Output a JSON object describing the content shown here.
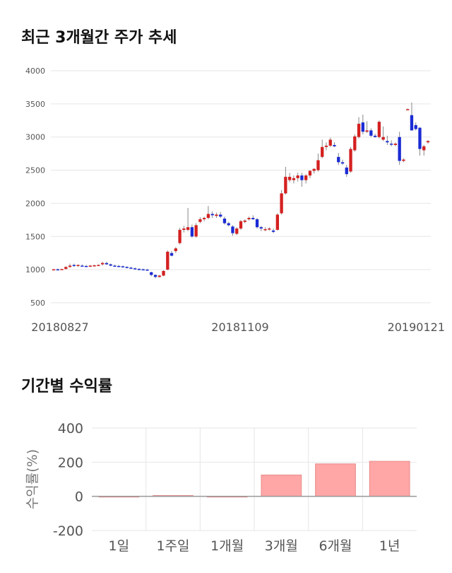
{
  "chart_data": [
    {
      "type": "candlestick",
      "title": "최근 3개월간 주가 추세",
      "ylim": [
        500,
        4000
      ],
      "yticks": [
        500,
        1000,
        1500,
        2000,
        2500,
        3000,
        3500,
        4000
      ],
      "xtick_labels": [
        "20180827",
        "20181109",
        "20190121"
      ],
      "grid": true,
      "colors": {
        "up": "#d42020",
        "down": "#1a2bd4",
        "wick": "#888888"
      },
      "candles": [
        [
          1000,
          1010,
          990,
          1005
        ],
        [
          1005,
          1015,
          995,
          1000
        ],
        [
          1000,
          1010,
          995,
          1008
        ],
        [
          1010,
          1050,
          1005,
          1040
        ],
        [
          1040,
          1090,
          1030,
          1060
        ],
        [
          1070,
          1090,
          1040,
          1060
        ],
        [
          1060,
          1080,
          1040,
          1070
        ],
        [
          1060,
          1080,
          1045,
          1055
        ],
        [
          1055,
          1070,
          1040,
          1050
        ],
        [
          1050,
          1070,
          1040,
          1060
        ],
        [
          1060,
          1075,
          1045,
          1065
        ],
        [
          1065,
          1080,
          1055,
          1070
        ],
        [
          1080,
          1120,
          1060,
          1100
        ],
        [
          1100,
          1115,
          1070,
          1080
        ],
        [
          1080,
          1090,
          1050,
          1060
        ],
        [
          1060,
          1075,
          1045,
          1055
        ],
        [
          1055,
          1070,
          1040,
          1050
        ],
        [
          1050,
          1060,
          1030,
          1040
        ],
        [
          1040,
          1050,
          1020,
          1030
        ],
        [
          1030,
          1040,
          1010,
          1020
        ],
        [
          1020,
          1030,
          1000,
          1010
        ],
        [
          1010,
          1020,
          990,
          1005
        ],
        [
          1005,
          1015,
          990,
          1000
        ],
        [
          1000,
          1010,
          985,
          995
        ],
        [
          960,
          970,
          900,
          920
        ],
        [
          920,
          930,
          870,
          890
        ],
        [
          890,
          920,
          880,
          910
        ],
        [
          910,
          990,
          900,
          980
        ],
        [
          1000,
          1290,
          990,
          1270
        ],
        [
          1250,
          1280,
          1200,
          1210
        ],
        [
          1280,
          1340,
          1250,
          1320
        ],
        [
          1400,
          1630,
          1380,
          1600
        ],
        [
          1600,
          1660,
          1560,
          1620
        ],
        [
          1600,
          1930,
          1580,
          1640
        ],
        [
          1640,
          1680,
          1480,
          1500
        ],
        [
          1500,
          1700,
          1480,
          1670
        ],
        [
          1720,
          1790,
          1700,
          1760
        ],
        [
          1760,
          1800,
          1730,
          1780
        ],
        [
          1780,
          1960,
          1760,
          1840
        ],
        [
          1840,
          1880,
          1780,
          1820
        ],
        [
          1810,
          1860,
          1780,
          1830
        ],
        [
          1830,
          1870,
          1780,
          1800
        ],
        [
          1770,
          1800,
          1680,
          1700
        ],
        [
          1700,
          1720,
          1650,
          1670
        ],
        [
          1650,
          1670,
          1510,
          1550
        ],
        [
          1540,
          1640,
          1520,
          1620
        ],
        [
          1620,
          1750,
          1600,
          1730
        ],
        [
          1720,
          1760,
          1700,
          1740
        ],
        [
          1760,
          1800,
          1740,
          1780
        ],
        [
          1780,
          1820,
          1750,
          1760
        ],
        [
          1760,
          1780,
          1620,
          1640
        ],
        [
          1640,
          1660,
          1580,
          1620
        ],
        [
          1600,
          1640,
          1580,
          1610
        ],
        [
          1610,
          1640,
          1590,
          1620
        ],
        [
          1590,
          1620,
          1550,
          1570
        ],
        [
          1600,
          1850,
          1590,
          1830
        ],
        [
          1850,
          2200,
          1830,
          2150
        ],
        [
          2150,
          2550,
          2130,
          2400
        ],
        [
          2350,
          2460,
          2320,
          2400
        ],
        [
          2350,
          2420,
          2300,
          2380
        ],
        [
          2380,
          2460,
          2330,
          2420
        ],
        [
          2420,
          2460,
          2250,
          2350
        ],
        [
          2350,
          2440,
          2300,
          2420
        ],
        [
          2420,
          2500,
          2380,
          2490
        ],
        [
          2490,
          2530,
          2450,
          2520
        ],
        [
          2500,
          2750,
          2480,
          2650
        ],
        [
          2700,
          2960,
          2680,
          2850
        ],
        [
          2850,
          2920,
          2800,
          2870
        ],
        [
          2870,
          2990,
          2850,
          2960
        ],
        [
          2880,
          2920,
          2850,
          2860
        ],
        [
          2700,
          2760,
          2580,
          2620
        ],
        [
          2620,
          2660,
          2580,
          2600
        ],
        [
          2540,
          2580,
          2400,
          2440
        ],
        [
          2480,
          2850,
          2460,
          2820
        ],
        [
          2800,
          3040,
          2780,
          3010
        ],
        [
          3000,
          3300,
          2980,
          3200
        ],
        [
          3220,
          3340,
          3040,
          3080
        ],
        [
          3080,
          3240,
          3060,
          3100
        ],
        [
          3100,
          3130,
          3000,
          3020
        ],
        [
          3020,
          3050,
          2990,
          3000
        ],
        [
          3000,
          3250,
          2980,
          3230
        ],
        [
          2960,
          3160,
          2940,
          3000
        ],
        [
          2940,
          3020,
          2880,
          2920
        ],
        [
          2900,
          2950,
          2860,
          2890
        ],
        [
          2880,
          2920,
          2860,
          2900
        ],
        [
          3000,
          3080,
          2580,
          2640
        ],
        [
          2640,
          2680,
          2620,
          2660
        ],
        [
          3420,
          3430,
          3410,
          3420
        ],
        [
          3330,
          3520,
          3100,
          3100
        ],
        [
          3180,
          3220,
          3100,
          3120
        ],
        [
          3140,
          3150,
          2720,
          2820
        ],
        [
          2800,
          2880,
          2720,
          2860
        ],
        [
          2920,
          2950,
          2900,
          2940
        ]
      ]
    },
    {
      "type": "bar",
      "title": "기간별 수익률",
      "categories": [
        "1일",
        "1주일",
        "1개월",
        "3개월",
        "6개월",
        "1년"
      ],
      "values": [
        0,
        5,
        -2,
        125,
        190,
        205
      ],
      "ylabel": "수익률(%)",
      "ylim": [
        -200,
        400
      ],
      "yticks": [
        -200,
        0,
        200,
        400
      ],
      "grid": true,
      "colors": {
        "bar": "#ffa6a6",
        "bar_edge": "#e98a8a",
        "zero_line": "#999999"
      }
    }
  ]
}
